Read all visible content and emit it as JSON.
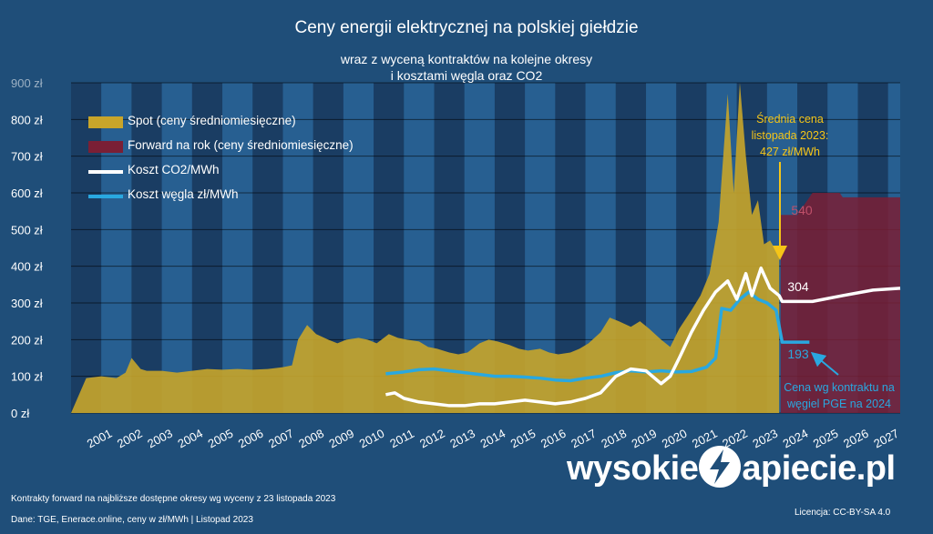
{
  "title": "Ceny energii elektrycznej na polskiej giełdzie",
  "subtitle_line1": "wraz z wyceną kontraktów na kolejne okresy",
  "subtitle_line2": "i kosztami węgla oraz CO2",
  "annotations": {
    "avg_line1": "Średnia cena",
    "avg_line2": "listopada 2023:",
    "avg_line3": "427 zł/MWh",
    "forward_value": "540",
    "co2_value": "304",
    "coal_value": "193",
    "coal_note_line1": "Cena wg kontraktu na",
    "coal_note_line2": "węgiel PGE na 2024"
  },
  "footer": {
    "note": "Kontrakty forward na najbliższe dostępne okresy wg wyceny z 23 listopada 2023",
    "source": "Dane: TGE, Enerace.online, ceny w zł/MWh  | Listopad 2023",
    "license": "Licencja: CC-BY-SA 4.0"
  },
  "logo": {
    "left": "wysokie",
    "right": "apiecie.pl",
    "mark_icon": "lightning-bolt-icon"
  },
  "colors": {
    "background": "#1f4e79",
    "band_dark": "#1a3d63",
    "band_light": "#275f91",
    "spot": "#c8a52a",
    "forward": "#7a1f35",
    "co2": "#ffffff",
    "coal": "#29a8e0",
    "avg_annotation": "#f5c518",
    "forward_label": "#c0506a",
    "coal_label": "#29a8e0"
  },
  "chart_data": {
    "type": "area",
    "title": "Ceny energii elektrycznej na polskiej giełdzie",
    "ylabel": "",
    "xlabel": "",
    "ylim": [
      0,
      900
    ],
    "y_ticks": [
      "0 zł",
      "100 zł",
      "200 zł",
      "300 zł",
      "400 zł",
      "500 zł",
      "600 zł",
      "700 zł",
      "800 zł",
      "900 zł"
    ],
    "x_ticks": [
      "2001",
      "2002",
      "2003",
      "2004",
      "2005",
      "2006",
      "2007",
      "2008",
      "2009",
      "2010",
      "2011",
      "2012",
      "2013",
      "2014",
      "2015",
      "2016",
      "2017",
      "2018",
      "2019",
      "2020",
      "2021",
      "2022",
      "2023",
      "2024",
      "2025",
      "2026",
      "2027"
    ],
    "xlim": [
      2000.5,
      2027.9
    ],
    "grid": true,
    "legend_position": "top-left",
    "series": [
      {
        "name": "Spot (ceny średniomiesięczne)",
        "kind": "area",
        "x": [
          2000.5,
          2001.0,
          2001.5,
          2002.0,
          2002.3,
          2002.5,
          2002.8,
          2003.0,
          2003.5,
          2004.0,
          2004.5,
          2005.0,
          2005.5,
          2006.0,
          2006.5,
          2007.0,
          2007.5,
          2007.8,
          2008.0,
          2008.3,
          2008.6,
          2009.0,
          2009.3,
          2009.6,
          2010.0,
          2010.3,
          2010.6,
          2011.0,
          2011.3,
          2011.6,
          2012.0,
          2012.3,
          2012.6,
          2013.0,
          2013.3,
          2013.6,
          2014.0,
          2014.3,
          2014.6,
          2015.0,
          2015.3,
          2015.6,
          2016.0,
          2016.3,
          2016.6,
          2017.0,
          2017.3,
          2017.6,
          2018.0,
          2018.3,
          2018.6,
          2019.0,
          2019.3,
          2019.6,
          2020.0,
          2020.3,
          2020.6,
          2021.0,
          2021.3,
          2021.6,
          2021.9,
          2022.0,
          2022.2,
          2022.4,
          2022.6,
          2022.8,
          2023.0,
          2023.2,
          2023.4,
          2023.6,
          2023.9
        ],
        "values": [
          0,
          95,
          100,
          95,
          110,
          150,
          120,
          115,
          115,
          110,
          115,
          120,
          118,
          120,
          118,
          120,
          125,
          130,
          200,
          240,
          215,
          200,
          190,
          200,
          205,
          200,
          190,
          215,
          205,
          200,
          195,
          180,
          175,
          165,
          160,
          165,
          190,
          200,
          195,
          185,
          175,
          170,
          175,
          165,
          160,
          165,
          175,
          190,
          220,
          260,
          250,
          235,
          250,
          230,
          200,
          180,
          230,
          280,
          320,
          380,
          520,
          640,
          870,
          600,
          900,
          700,
          540,
          580,
          460,
          470,
          427
        ]
      },
      {
        "name": "Forward na rok (ceny średniomiesięczne)",
        "kind": "area",
        "x": [
          2023.95,
          2024.5,
          2025.0,
          2025.9,
          2026.0,
          2026.9,
          2027.9
        ],
        "values": [
          540,
          540,
          600,
          600,
          588,
          588,
          588
        ]
      },
      {
        "name": "Koszt CO2/MWh",
        "kind": "line",
        "x": [
          2010.9,
          2011.2,
          2011.5,
          2012.0,
          2012.5,
          2013.0,
          2013.5,
          2014.0,
          2014.5,
          2015.0,
          2015.5,
          2016.0,
          2016.5,
          2017.0,
          2017.5,
          2018.0,
          2018.5,
          2019.0,
          2019.5,
          2020.0,
          2020.3,
          2020.6,
          2021.0,
          2021.4,
          2021.8,
          2022.2,
          2022.5,
          2022.8,
          2023.0,
          2023.3,
          2023.6,
          2023.9,
          2024.0,
          2025.0,
          2026.0,
          2027.0,
          2027.9
        ],
        "values": [
          50,
          55,
          40,
          30,
          25,
          20,
          20,
          25,
          25,
          30,
          35,
          30,
          25,
          30,
          40,
          55,
          100,
          120,
          115,
          80,
          100,
          150,
          220,
          280,
          330,
          360,
          310,
          380,
          320,
          395,
          340,
          320,
          304,
          304,
          320,
          335,
          340
        ]
      },
      {
        "name": "Koszt węgla zł/MWh",
        "kind": "line",
        "x": [
          2010.9,
          2011.5,
          2012.0,
          2012.5,
          2013.0,
          2013.5,
          2014.0,
          2014.5,
          2015.0,
          2015.5,
          2016.0,
          2016.5,
          2017.0,
          2017.5,
          2018.0,
          2018.5,
          2019.0,
          2019.5,
          2020.0,
          2020.5,
          2021.0,
          2021.5,
          2021.8,
          2022.0,
          2022.3,
          2022.6,
          2022.9,
          2023.2,
          2023.5,
          2023.8,
          2024.0,
          2024.9
        ],
        "values": [
          107,
          112,
          118,
          120,
          115,
          110,
          105,
          100,
          100,
          98,
          95,
          90,
          88,
          95,
          100,
          110,
          115,
          112,
          115,
          112,
          113,
          125,
          150,
          285,
          280,
          310,
          330,
          310,
          300,
          280,
          193,
          193
        ]
      }
    ]
  }
}
